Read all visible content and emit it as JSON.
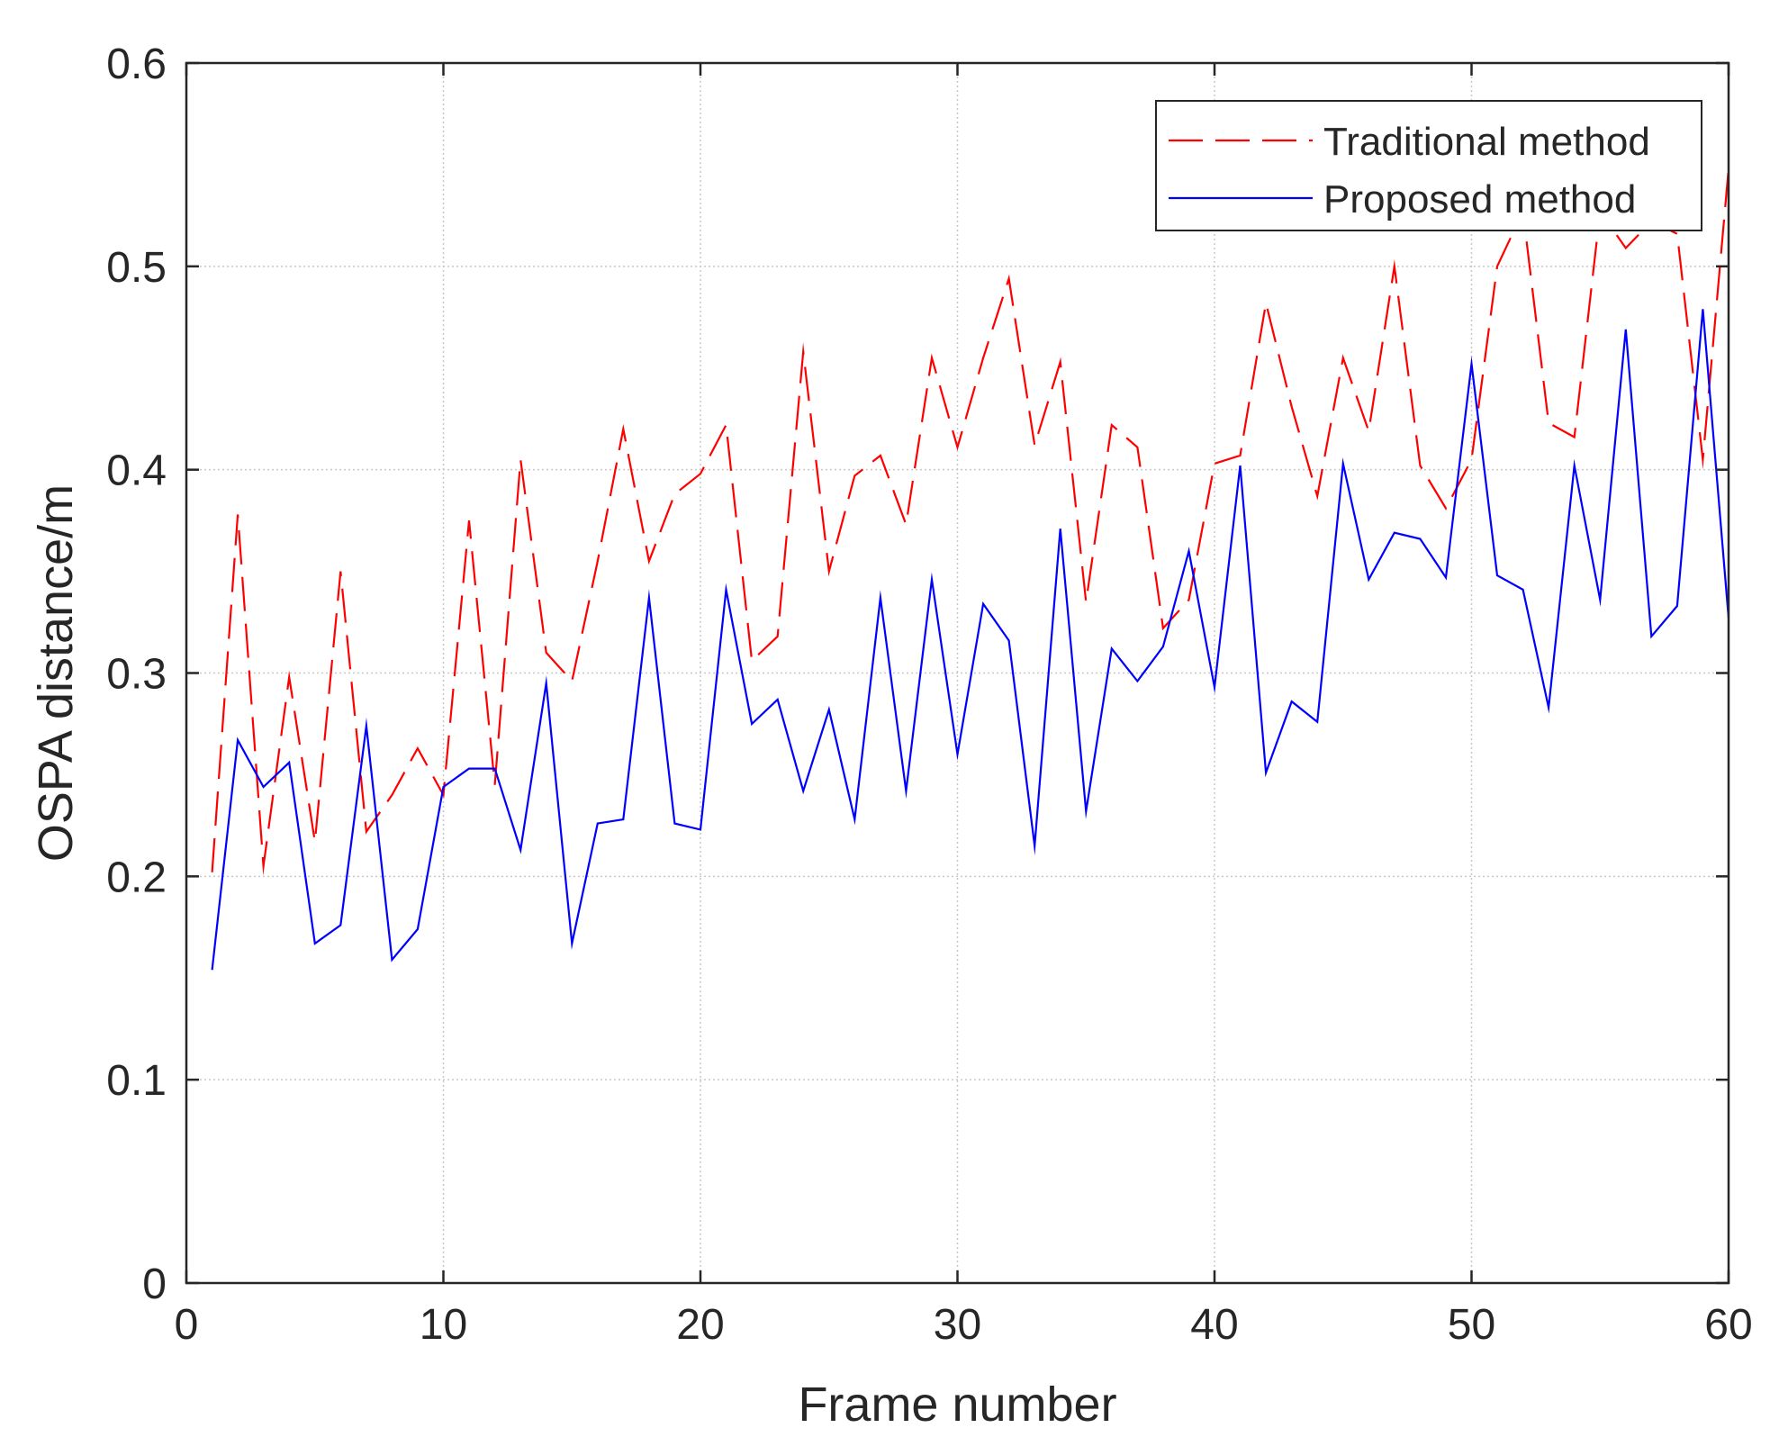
{
  "chart_data": {
    "type": "line",
    "xlabel": "Frame number",
    "ylabel": "OSPA distance/m",
    "xlim": [
      0,
      60
    ],
    "ylim": [
      0,
      0.6
    ],
    "xticks": [
      "0",
      "10",
      "20",
      "30",
      "40",
      "50",
      "60"
    ],
    "yticks": [
      "0",
      "0.1",
      "0.2",
      "0.3",
      "0.4",
      "0.5",
      "0.6"
    ],
    "grid": true,
    "legend_position": "top-right",
    "x": [
      1,
      2,
      3,
      4,
      5,
      6,
      7,
      8,
      9,
      10,
      11,
      12,
      13,
      14,
      15,
      16,
      17,
      18,
      19,
      20,
      21,
      22,
      23,
      24,
      25,
      26,
      27,
      28,
      29,
      30,
      31,
      32,
      33,
      34,
      35,
      36,
      37,
      38,
      39,
      40,
      41,
      42,
      43,
      44,
      45,
      46,
      47,
      48,
      49,
      50,
      51,
      52,
      53,
      54,
      55,
      56,
      57,
      58,
      59,
      60
    ],
    "series": [
      {
        "name": "Traditional method",
        "color": "#ff0000",
        "style": "dashed",
        "values": [
          0.202,
          0.378,
          0.205,
          0.298,
          0.217,
          0.35,
          0.222,
          0.24,
          0.263,
          0.24,
          0.375,
          0.245,
          0.405,
          0.31,
          0.296,
          0.355,
          0.42,
          0.355,
          0.388,
          0.398,
          0.422,
          0.306,
          0.318,
          0.458,
          0.35,
          0.397,
          0.407,
          0.373,
          0.455,
          0.411,
          0.455,
          0.494,
          0.412,
          0.453,
          0.335,
          0.422,
          0.411,
          0.322,
          0.336,
          0.403,
          0.407,
          0.482,
          0.431,
          0.387,
          0.455,
          0.419,
          0.5,
          0.402,
          0.381,
          0.405,
          0.5,
          0.527,
          0.423,
          0.416,
          0.527,
          0.509,
          0.522,
          0.516,
          0.405,
          0.548
        ]
      },
      {
        "name": "Proposed method",
        "color": "#0000ff",
        "style": "solid",
        "values": [
          0.154,
          0.267,
          0.244,
          0.256,
          0.167,
          0.176,
          0.274,
          0.159,
          0.174,
          0.244,
          0.253,
          0.253,
          0.213,
          0.295,
          0.167,
          0.226,
          0.228,
          0.337,
          0.226,
          0.223,
          0.341,
          0.275,
          0.287,
          0.242,
          0.282,
          0.228,
          0.337,
          0.242,
          0.346,
          0.26,
          0.334,
          0.316,
          0.215,
          0.371,
          0.232,
          0.312,
          0.296,
          0.313,
          0.36,
          0.293,
          0.402,
          0.251,
          0.286,
          0.276,
          0.403,
          0.346,
          0.369,
          0.366,
          0.347,
          0.452,
          0.348,
          0.341,
          0.283,
          0.402,
          0.336,
          0.469,
          0.318,
          0.333,
          0.479,
          0.327
        ]
      }
    ]
  }
}
